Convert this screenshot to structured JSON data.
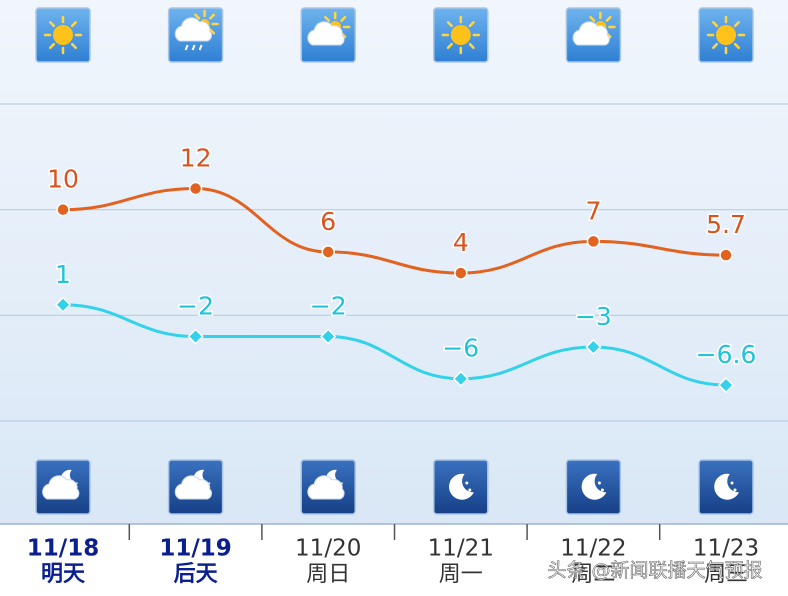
{
  "chart_data": {
    "type": "line",
    "categories": [
      "11/18",
      "11/19",
      "11/20",
      "11/21",
      "11/22",
      "11/23"
    ],
    "weekdays": [
      "明天",
      "后天",
      "周日",
      "周一",
      "周二",
      "周三"
    ],
    "series": [
      {
        "color": "#e2621f",
        "label_color": "#d9531e",
        "values": [
          10,
          12,
          6,
          4,
          7,
          5.7
        ]
      },
      {
        "color": "#33d2ea",
        "label_color": "#1fc3da",
        "values": [
          1,
          -2,
          -2,
          -6,
          -3,
          -6.6
        ],
        "value_labels": [
          "1",
          "−2",
          "−2",
          "−6",
          "−3",
          "−6.6"
        ]
      }
    ],
    "ylim": [
      -10,
      20
    ],
    "yticks": [
      -10,
      0,
      10,
      20
    ],
    "grid": true,
    "watermark": "头条 @新闻联播天气预报"
  }
}
